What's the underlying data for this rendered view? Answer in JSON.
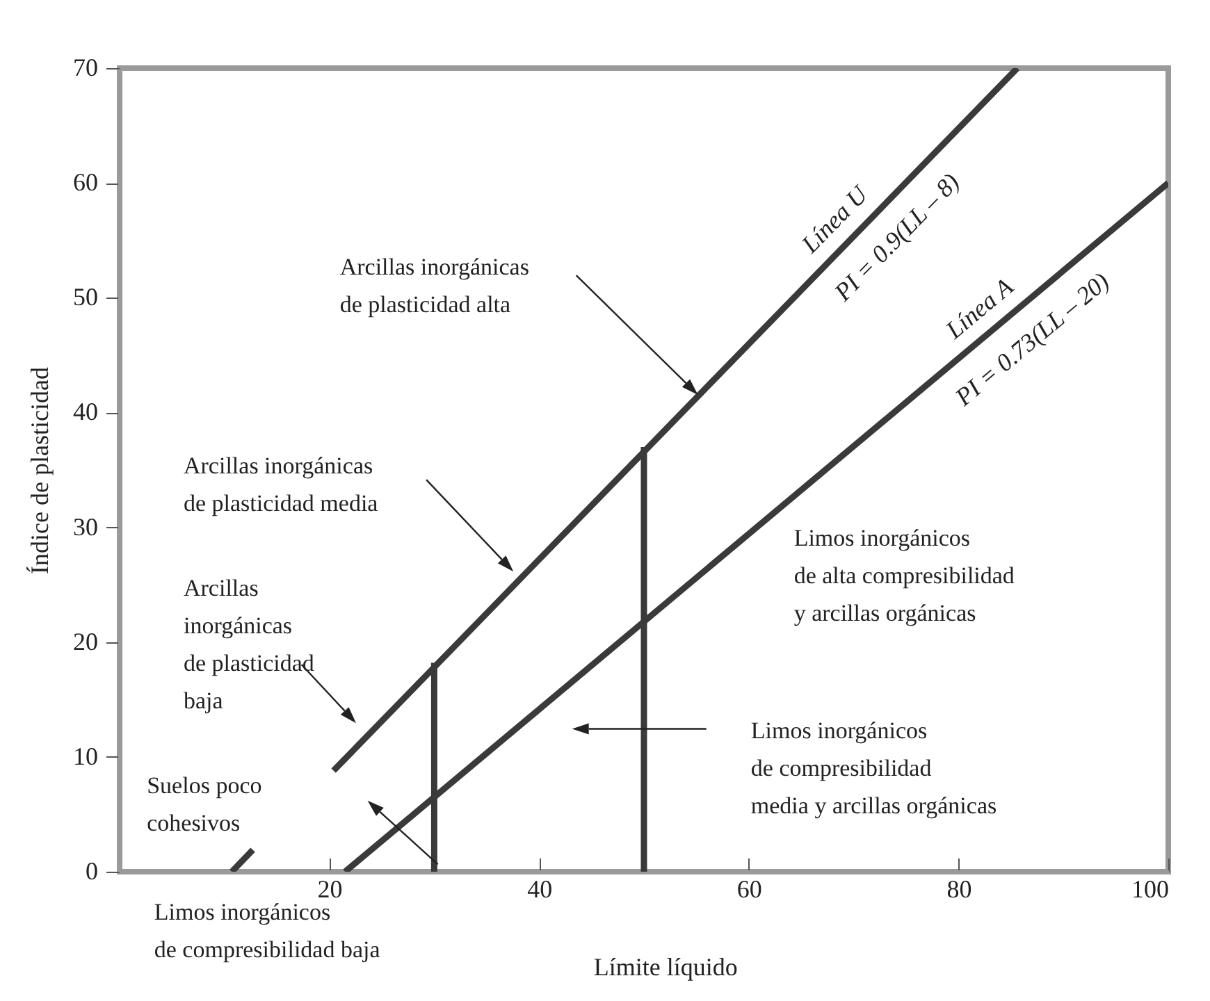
{
  "chart_data": {
    "type": "line",
    "xlabel": "Límite líquido",
    "ylabel": "Índice de plasticidad",
    "xlim": [
      0,
      100
    ],
    "xticks": [
      20,
      40,
      60,
      80,
      100
    ],
    "ylim": [
      0,
      70
    ],
    "yticks": [
      0,
      10,
      20,
      30,
      40,
      50,
      60,
      70
    ],
    "grid": false,
    "legend": false,
    "marker": "none",
    "line_style": "solid",
    "series": [
      {
        "name": "Línea U",
        "color": "#3a3a3a",
        "x": [
          10.7,
          12.7,
          16,
          20.4,
          85.6
        ],
        "values": [
          0,
          1.9,
          null,
          8.8,
          70
        ]
      },
      {
        "name": "Línea A",
        "color": "#3a3a3a",
        "x": [
          21.5,
          100
        ],
        "values": [
          0,
          60
        ]
      },
      {
        "color": "#3a3a3a",
        "x": [
          30,
          30
        ],
        "values": [
          0,
          18.2
        ]
      },
      {
        "color": "#3a3a3a",
        "x": [
          50,
          50
        ],
        "values": [
          0,
          37
        ]
      }
    ],
    "annotations": [
      "PI = 0.9(LL – 8)",
      "PI = 0.73(LL – 20)",
      "Arcillas inorgánicas\nde plasticidad alta",
      "Arcillas inorgánicas\nde plasticidad media",
      "Arcillas\ninorgánicas\nde plasticidad\nbaja",
      "Suelos poco\ncohesivos",
      "Limos inorgánicos\nde alta compresibilidad\ny arcillas orgánicas",
      "Limos inorgánicos\nde compresibilidad\nmedia y arcillas orgánicas",
      "Limos inorgánicos\nde compresibilidad baja"
    ]
  }
}
